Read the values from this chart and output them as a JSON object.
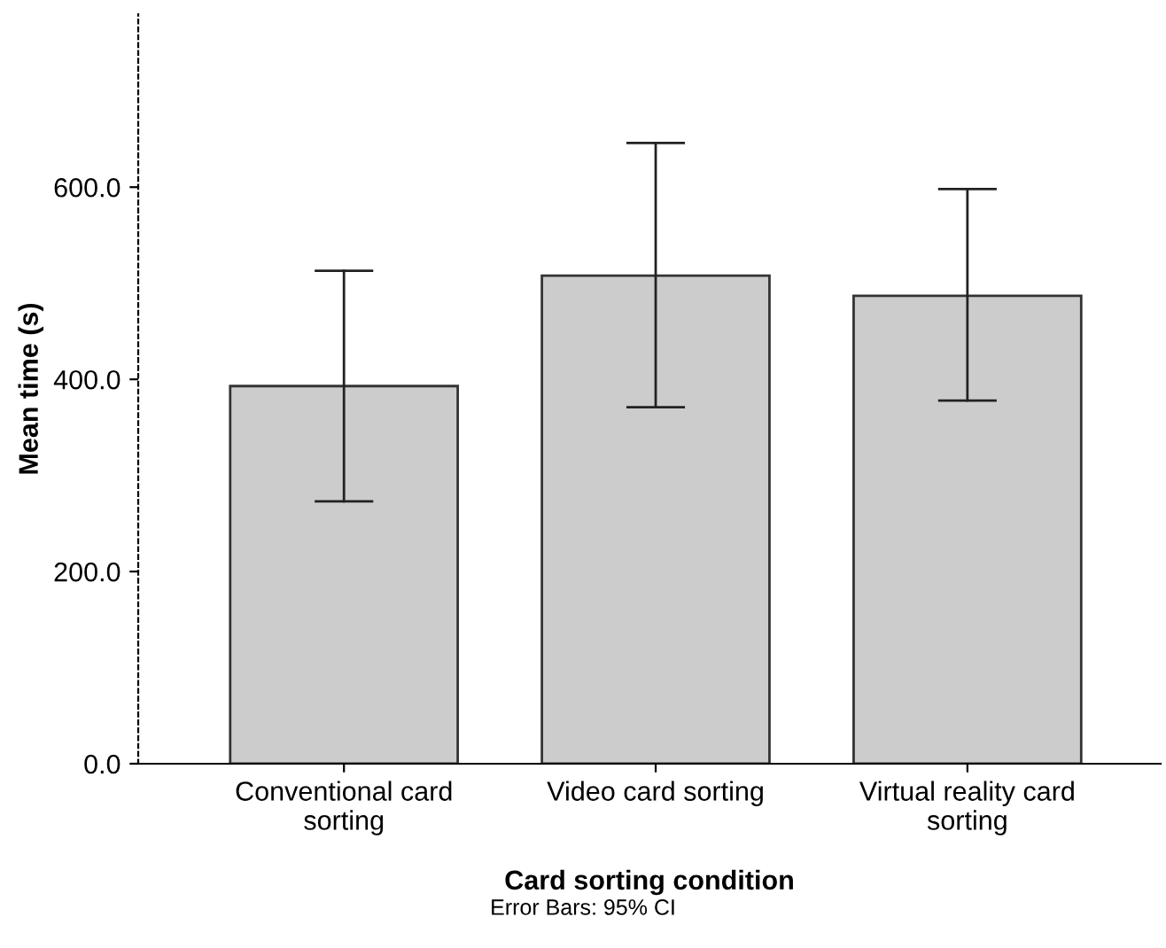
{
  "chart_data": {
    "type": "bar",
    "xlabel": "Card sorting condition",
    "ylabel": "Mean time (s)",
    "categories": [
      "Conventional card\nsorting",
      "Video card sorting",
      "Virtual reality card\nsorting"
    ],
    "values": [
      393,
      508,
      487
    ],
    "errors": [
      [
        273,
        513
      ],
      [
        371,
        646
      ],
      [
        378,
        598
      ]
    ],
    "color": "#cccccc",
    "ylim": [
      0,
      780
    ],
    "yticks": [
      {
        "value": 0,
        "label": "0.0"
      },
      {
        "value": 200,
        "label": "200.0"
      },
      {
        "value": 400,
        "label": "400.0"
      },
      {
        "value": 600,
        "label": "600.0"
      }
    ],
    "grid": false,
    "annotations": [
      "Error Bars: 95% CI"
    ]
  }
}
